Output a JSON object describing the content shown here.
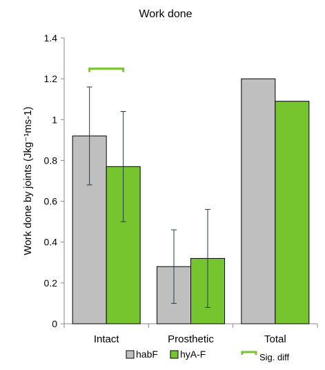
{
  "chart_data": {
    "type": "bar",
    "title": "Work done",
    "ylabel": "Work done by joints (Jkg⁻¹ms-1)",
    "xlabel": "",
    "categories": [
      "Intact",
      "Prosthetic",
      "Total"
    ],
    "ylim": [
      0,
      1.4
    ],
    "yticks": [
      "0",
      "0.2",
      "0.4",
      "0.6",
      "0.8",
      "1",
      "1.2",
      "1.4"
    ],
    "grid": false,
    "legend_position": "bottom",
    "series": [
      {
        "name": "habF",
        "color": "#bfbfbf",
        "values": [
          0.92,
          0.28,
          1.2
        ],
        "errors": [
          0.24,
          0.18,
          null
        ]
      },
      {
        "name": "hyA-F",
        "color": "#76c52e",
        "values": [
          0.77,
          0.32,
          1.09
        ],
        "errors": [
          0.27,
          0.24,
          null
        ]
      }
    ],
    "annotations": [
      {
        "type": "bracket",
        "category": "Intact",
        "y": 1.25,
        "color": "#76c52e",
        "label": "Sig. diff"
      }
    ],
    "error_bar_color": "#1f3a4d"
  }
}
